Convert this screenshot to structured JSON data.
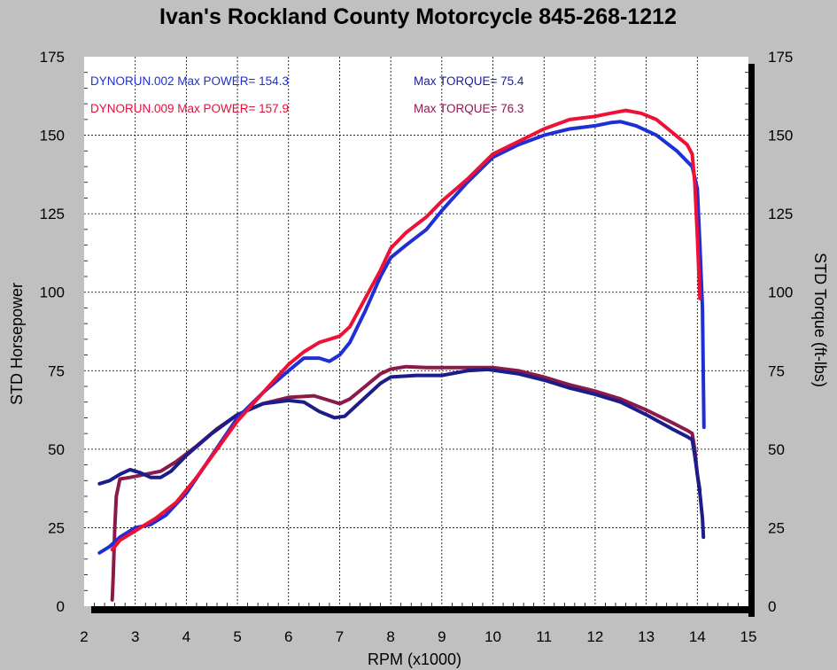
{
  "page": {
    "title": "Ivan's Rockland County Motorcycle  845-268-1212"
  },
  "colors": {
    "background": "#c0c0c0",
    "plot_bg": "#ffffff",
    "grid": "#000000",
    "run002_power": "#1f2fd6",
    "run009_power": "#ee1037",
    "run002_torque": "#1c1c8a",
    "run009_torque": "#8b1a4a",
    "legend_002": "#1f2fd6",
    "legend_009": "#e0103a",
    "torque_label_002": "#1c1c9a",
    "torque_label_009": "#8a1a55"
  },
  "chart_data": {
    "type": "line",
    "title": "Ivan's Rockland County Motorcycle  845-268-1212",
    "xlabel": "RPM (x1000)",
    "ylabel": "STD Horsepower",
    "y2label": "STD Torque (ft-lbs)",
    "xlim": [
      2,
      15
    ],
    "ylim": [
      0,
      175
    ],
    "y2lim": [
      0,
      175
    ],
    "x_ticks": [
      "2",
      "3",
      "4",
      "5",
      "6",
      "7",
      "8",
      "9",
      "10",
      "11",
      "12",
      "13",
      "14",
      "15"
    ],
    "y_ticks": [
      "0",
      "25",
      "50",
      "75",
      "100",
      "125",
      "150",
      "175"
    ],
    "y2_ticks": [
      "0",
      "25",
      "50",
      "75",
      "100",
      "125",
      "150",
      "175"
    ],
    "grid": true,
    "legend_position": "top-left inside plot",
    "legend": {
      "run002_power": "DYNORUN.002  Max POWER= 154.3",
      "run009_power": "DYNORUN.009  Max POWER= 157.9",
      "run002_torque": "Max TORQUE= 75.4",
      "run009_torque": "Max TORQUE= 76.3"
    },
    "series": [
      {
        "name": "DYNORUN.002",
        "measure": "power",
        "color": "#1f2fd6",
        "points": [
          [
            2.3,
            17
          ],
          [
            2.5,
            19
          ],
          [
            2.7,
            22
          ],
          [
            3.0,
            25
          ],
          [
            3.3,
            26
          ],
          [
            3.6,
            29
          ],
          [
            4.0,
            36
          ],
          [
            4.5,
            48
          ],
          [
            5.0,
            60
          ],
          [
            5.5,
            68
          ],
          [
            6.0,
            75
          ],
          [
            6.3,
            79
          ],
          [
            6.6,
            79
          ],
          [
            6.8,
            78
          ],
          [
            7.0,
            80
          ],
          [
            7.2,
            84
          ],
          [
            7.5,
            94
          ],
          [
            7.8,
            105
          ],
          [
            8.0,
            111
          ],
          [
            8.3,
            115
          ],
          [
            8.7,
            120
          ],
          [
            9.0,
            126
          ],
          [
            9.5,
            135
          ],
          [
            10.0,
            143
          ],
          [
            10.5,
            147
          ],
          [
            11.0,
            150
          ],
          [
            11.5,
            152
          ],
          [
            12.0,
            153
          ],
          [
            12.3,
            154
          ],
          [
            12.5,
            154.3
          ],
          [
            12.8,
            153
          ],
          [
            13.2,
            150
          ],
          [
            13.6,
            145
          ],
          [
            13.9,
            140
          ],
          [
            14.0,
            133
          ],
          [
            14.05,
            115
          ],
          [
            14.1,
            95
          ],
          [
            14.12,
            70
          ],
          [
            14.13,
            57
          ]
        ]
      },
      {
        "name": "DYNORUN.009",
        "measure": "power",
        "color": "#ee1037",
        "points": [
          [
            2.55,
            18
          ],
          [
            2.7,
            21
          ],
          [
            3.0,
            24
          ],
          [
            3.4,
            28
          ],
          [
            3.8,
            33
          ],
          [
            4.2,
            41
          ],
          [
            4.6,
            50
          ],
          [
            5.0,
            59
          ],
          [
            5.5,
            68
          ],
          [
            6.0,
            77
          ],
          [
            6.3,
            81
          ],
          [
            6.6,
            84
          ],
          [
            7.0,
            86
          ],
          [
            7.2,
            89
          ],
          [
            7.5,
            98
          ],
          [
            7.8,
            107
          ],
          [
            8.0,
            114
          ],
          [
            8.3,
            119
          ],
          [
            8.7,
            124
          ],
          [
            9.0,
            129
          ],
          [
            9.5,
            136
          ],
          [
            10.0,
            144
          ],
          [
            10.5,
            148
          ],
          [
            11.0,
            152
          ],
          [
            11.5,
            155
          ],
          [
            12.0,
            156
          ],
          [
            12.3,
            157
          ],
          [
            12.6,
            157.9
          ],
          [
            12.9,
            157
          ],
          [
            13.2,
            155
          ],
          [
            13.5,
            151
          ],
          [
            13.8,
            147
          ],
          [
            13.9,
            144
          ],
          [
            13.95,
            135
          ],
          [
            14.0,
            118
          ],
          [
            14.05,
            98
          ]
        ]
      },
      {
        "name": "DYNORUN.002",
        "measure": "torque",
        "color": "#1c1c8a",
        "points": [
          [
            2.3,
            39
          ],
          [
            2.5,
            40
          ],
          [
            2.7,
            42
          ],
          [
            2.9,
            43.5
          ],
          [
            3.1,
            42.5
          ],
          [
            3.3,
            41
          ],
          [
            3.5,
            41
          ],
          [
            3.7,
            43
          ],
          [
            4.0,
            48
          ],
          [
            4.5,
            55
          ],
          [
            5.0,
            61
          ],
          [
            5.5,
            64.5
          ],
          [
            6.0,
            65.5
          ],
          [
            6.3,
            65
          ],
          [
            6.6,
            62
          ],
          [
            6.9,
            60
          ],
          [
            7.1,
            60.5
          ],
          [
            7.4,
            65
          ],
          [
            7.8,
            71
          ],
          [
            8.0,
            73
          ],
          [
            8.5,
            73.5
          ],
          [
            9.0,
            73.5
          ],
          [
            9.5,
            75
          ],
          [
            9.9,
            75.4
          ],
          [
            10.5,
            74
          ],
          [
            11.0,
            72
          ],
          [
            11.5,
            69.5
          ],
          [
            12.0,
            67.5
          ],
          [
            12.5,
            65
          ],
          [
            13.0,
            61
          ],
          [
            13.5,
            56.5
          ],
          [
            13.8,
            54
          ],
          [
            13.9,
            53
          ],
          [
            13.95,
            48
          ],
          [
            14.0,
            42
          ],
          [
            14.05,
            36
          ],
          [
            14.1,
            28
          ],
          [
            14.12,
            22
          ]
        ]
      },
      {
        "name": "DYNORUN.009",
        "measure": "torque",
        "color": "#8b1a4a",
        "points": [
          [
            2.55,
            2
          ],
          [
            2.57,
            10
          ],
          [
            2.6,
            25
          ],
          [
            2.63,
            35
          ],
          [
            2.7,
            40.5
          ],
          [
            2.9,
            41
          ],
          [
            3.2,
            42
          ],
          [
            3.5,
            43
          ],
          [
            3.8,
            46
          ],
          [
            4.2,
            51
          ],
          [
            4.6,
            56.5
          ],
          [
            5.0,
            61
          ],
          [
            5.5,
            64.5
          ],
          [
            6.0,
            66.5
          ],
          [
            6.5,
            67
          ],
          [
            6.8,
            65.5
          ],
          [
            7.0,
            64.5
          ],
          [
            7.2,
            66
          ],
          [
            7.5,
            70
          ],
          [
            7.8,
            74
          ],
          [
            8.0,
            75.5
          ],
          [
            8.3,
            76.3
          ],
          [
            8.7,
            76
          ],
          [
            9.0,
            76
          ],
          [
            9.5,
            76
          ],
          [
            10.0,
            76
          ],
          [
            10.5,
            75
          ],
          [
            11.0,
            73
          ],
          [
            11.5,
            70.5
          ],
          [
            12.0,
            68.5
          ],
          [
            12.5,
            66
          ],
          [
            13.0,
            62.5
          ],
          [
            13.5,
            58.5
          ],
          [
            13.8,
            56
          ],
          [
            13.9,
            55
          ],
          [
            13.95,
            50
          ],
          [
            14.0,
            42
          ],
          [
            14.05,
            37
          ]
        ]
      }
    ]
  }
}
